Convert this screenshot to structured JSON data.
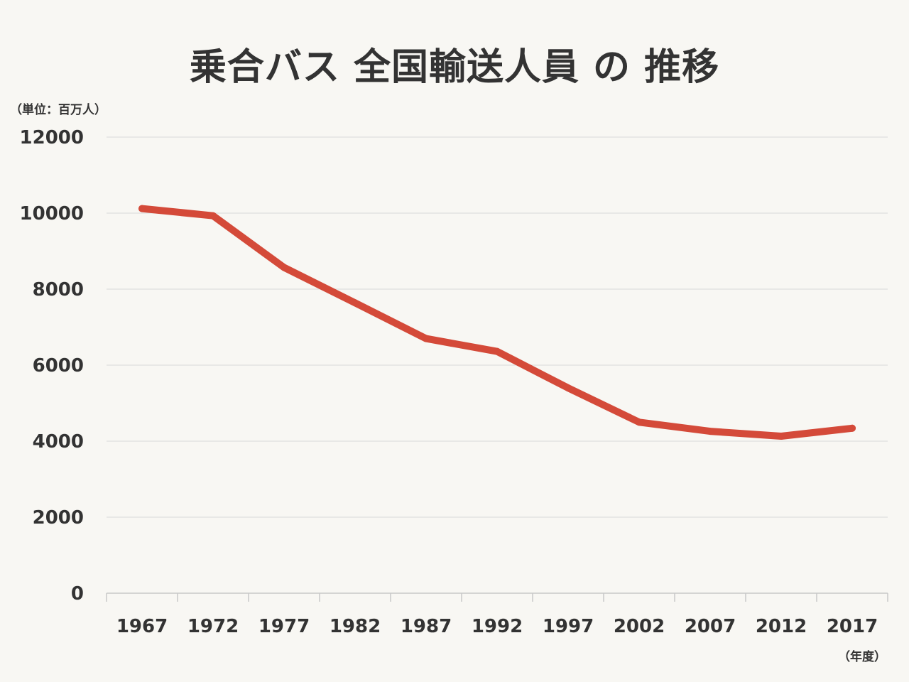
{
  "chart_data": {
    "type": "line",
    "title": "乗合バス 全国輸送人員 の 推移",
    "y_unit": "（単位：百万人）",
    "x_unit": "（年度）",
    "categories": [
      "1967",
      "1972",
      "1977",
      "1982",
      "1987",
      "1992",
      "1997",
      "2002",
      "2007",
      "2012",
      "2017"
    ],
    "series": [
      {
        "values": [
          10120,
          9930,
          8570,
          7640,
          6700,
          6360,
          5400,
          4500,
          4260,
          4130,
          4340
        ],
        "color": "#d44a39"
      }
    ],
    "y_ticks": [
      0,
      2000,
      4000,
      6000,
      8000,
      10000,
      12000
    ],
    "ylim": [
      0,
      12000
    ],
    "grid": true,
    "colors": {
      "line": "#d44a39",
      "grid": "#d9d9d9",
      "text": "#333333",
      "background": "#f8f7f3"
    }
  }
}
